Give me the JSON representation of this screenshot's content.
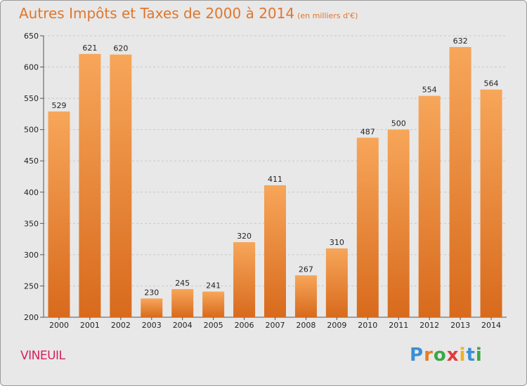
{
  "chart_data": {
    "type": "bar",
    "title": "Autres Impôts et Taxes de 2000 à 2014",
    "unit_note": "(en milliers d'€)",
    "categories": [
      "2000",
      "2001",
      "2002",
      "2003",
      "2004",
      "2005",
      "2006",
      "2007",
      "2008",
      "2009",
      "2010",
      "2011",
      "2012",
      "2013",
      "2014"
    ],
    "values": [
      529,
      621,
      620,
      230,
      245,
      241,
      320,
      411,
      267,
      310,
      487,
      500,
      554,
      632,
      564
    ],
    "ylim": [
      200,
      650
    ],
    "yticks": [
      200,
      250,
      300,
      350,
      400,
      450,
      500,
      550,
      600,
      650
    ],
    "grid": true,
    "bar_color_light": "#f7a65a",
    "bar_color_dark": "#d86a1c"
  },
  "footer": {
    "city": "VINEUIL",
    "logo_letters": [
      "P",
      "r",
      "o",
      "x",
      "i",
      "t",
      "i"
    ],
    "logo_colors": [
      "#3c8fd6",
      "#e67e22",
      "#3aa845",
      "#e23b3b",
      "#f2b01e",
      "#3c8fd6",
      "#3aa845"
    ]
  }
}
